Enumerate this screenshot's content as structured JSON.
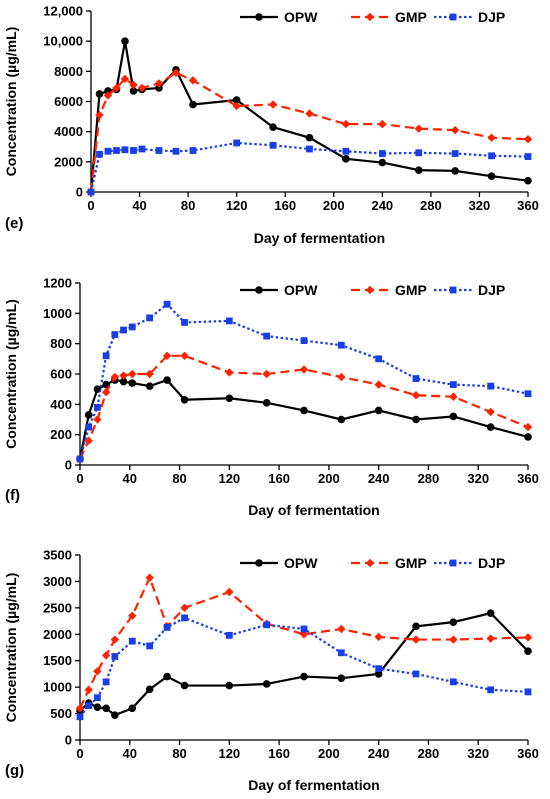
{
  "chart_data": [
    {
      "type": "line",
      "panel_label": "(e)",
      "xlabel": "Day of fermentation",
      "ylabel": "Concentration (µg/mL)",
      "xlim": [
        0,
        360
      ],
      "ylim": [
        0,
        12000
      ],
      "xticks": [
        0,
        40,
        80,
        120,
        160,
        200,
        240,
        280,
        320,
        360
      ],
      "yticks": [
        0,
        2000,
        4000,
        6000,
        8000,
        10000,
        12000
      ],
      "ytick_labels": [
        "0",
        "2000",
        "4000",
        "6000",
        "8000",
        "10,000",
        "12,000"
      ],
      "legend_position": "top-right",
      "series": [
        {
          "name": "OPW",
          "color": "#000000",
          "marker": "circle",
          "dash": "solid",
          "x": [
            0,
            7,
            14,
            21,
            28,
            35,
            42,
            56,
            70,
            84,
            120,
            150,
            180,
            210,
            240,
            270,
            300,
            330,
            360
          ],
          "y": [
            0,
            6500,
            6700,
            6800,
            10000,
            6700,
            6800,
            6900,
            8100,
            5800,
            6100,
            4300,
            3600,
            2200,
            1950,
            1450,
            1400,
            1050,
            750
          ]
        },
        {
          "name": "GMP",
          "color": "#ff2200",
          "marker": "diamond",
          "dash": "dashed",
          "x": [
            0,
            7,
            14,
            21,
            28,
            35,
            42,
            56,
            70,
            84,
            120,
            150,
            180,
            210,
            240,
            270,
            300,
            330,
            360
          ],
          "y": [
            0,
            5100,
            6400,
            6900,
            7500,
            7100,
            6900,
            7200,
            7900,
            7400,
            5700,
            5800,
            5200,
            4500,
            4500,
            4200,
            4100,
            3600,
            3500
          ]
        },
        {
          "name": "DJP",
          "color": "#1a3ee6",
          "marker": "square",
          "dash": "dotted",
          "x": [
            0,
            7,
            14,
            21,
            28,
            35,
            42,
            56,
            70,
            84,
            120,
            150,
            180,
            210,
            240,
            270,
            300,
            330,
            360
          ],
          "y": [
            0,
            2500,
            2700,
            2750,
            2800,
            2750,
            2850,
            2750,
            2700,
            2750,
            3250,
            3100,
            2850,
            2700,
            2550,
            2600,
            2550,
            2400,
            2350
          ]
        }
      ]
    },
    {
      "type": "line",
      "panel_label": "(f)",
      "xlabel": "Day of fermentation",
      "ylabel": "Concentration (µg/mL)",
      "xlim": [
        0,
        360
      ],
      "ylim": [
        0,
        1200
      ],
      "xticks": [
        0,
        40,
        80,
        120,
        160,
        200,
        240,
        280,
        320,
        360
      ],
      "yticks": [
        0,
        200,
        400,
        600,
        800,
        1000,
        1200
      ],
      "ytick_labels": [
        "0",
        "200",
        "400",
        "600",
        "800",
        "1000",
        "1200"
      ],
      "legend_position": "top-right",
      "series": [
        {
          "name": "OPW",
          "color": "#000000",
          "marker": "circle",
          "dash": "solid",
          "x": [
            0,
            7,
            14,
            21,
            28,
            35,
            42,
            56,
            70,
            84,
            120,
            150,
            180,
            210,
            240,
            270,
            300,
            330,
            360
          ],
          "y": [
            40,
            330,
            500,
            530,
            560,
            550,
            540,
            520,
            560,
            430,
            440,
            410,
            360,
            300,
            360,
            300,
            320,
            250,
            185
          ]
        },
        {
          "name": "GMP",
          "color": "#ff2200",
          "marker": "diamond",
          "dash": "dashed",
          "x": [
            0,
            7,
            14,
            21,
            28,
            35,
            42,
            56,
            70,
            84,
            120,
            150,
            180,
            210,
            240,
            270,
            300,
            330,
            360
          ],
          "y": [
            40,
            160,
            300,
            480,
            580,
            590,
            600,
            600,
            720,
            720,
            610,
            600,
            630,
            580,
            530,
            460,
            450,
            350,
            250
          ]
        },
        {
          "name": "DJP",
          "color": "#1a3ee6",
          "marker": "square",
          "dash": "dotted",
          "x": [
            0,
            7,
            14,
            21,
            28,
            35,
            42,
            56,
            70,
            84,
            120,
            150,
            180,
            210,
            240,
            270,
            300,
            330,
            360
          ],
          "y": [
            40,
            250,
            380,
            720,
            860,
            890,
            910,
            970,
            1060,
            940,
            950,
            850,
            820,
            790,
            700,
            570,
            530,
            520,
            470
          ]
        }
      ]
    },
    {
      "type": "line",
      "panel_label": "(g)",
      "xlabel": "Day of fermentation",
      "ylabel": "Concentration (µg/mL)",
      "xlim": [
        0,
        360
      ],
      "ylim": [
        0,
        3500
      ],
      "xticks": [
        0,
        40,
        80,
        120,
        160,
        200,
        240,
        280,
        320,
        360
      ],
      "yticks": [
        0,
        500,
        1000,
        1500,
        2000,
        2500,
        3000,
        3500
      ],
      "ytick_labels": [
        "0",
        "500",
        "1000",
        "1500",
        "2000",
        "2500",
        "3000",
        "3500"
      ],
      "legend_position": "top-right",
      "series": [
        {
          "name": "OPW",
          "color": "#000000",
          "marker": "circle",
          "dash": "solid",
          "x": [
            0,
            7,
            14,
            21,
            28,
            42,
            56,
            70,
            84,
            120,
            150,
            180,
            210,
            240,
            270,
            300,
            330,
            360
          ],
          "y": [
            550,
            700,
            620,
            600,
            470,
            600,
            960,
            1200,
            1030,
            1030,
            1060,
            1200,
            1170,
            1250,
            2150,
            2230,
            2400,
            1680
          ]
        },
        {
          "name": "GMP",
          "color": "#ff2200",
          "marker": "diamond",
          "dash": "dashed",
          "x": [
            0,
            7,
            14,
            21,
            28,
            42,
            56,
            70,
            84,
            120,
            150,
            180,
            210,
            240,
            270,
            300,
            330,
            360
          ],
          "y": [
            600,
            950,
            1300,
            1600,
            1900,
            2350,
            3070,
            2150,
            2500,
            2800,
            2200,
            2000,
            2100,
            1950,
            1900,
            1900,
            1920,
            1940
          ]
        },
        {
          "name": "DJP",
          "color": "#1a3ee6",
          "marker": "square",
          "dash": "dotted",
          "x": [
            0,
            7,
            14,
            21,
            28,
            42,
            56,
            70,
            84,
            120,
            150,
            180,
            210,
            240,
            270,
            300,
            330,
            360
          ],
          "y": [
            440,
            650,
            800,
            1100,
            1580,
            1870,
            1780,
            2130,
            2310,
            1980,
            2180,
            2100,
            1650,
            1350,
            1250,
            1100,
            950,
            910
          ]
        }
      ]
    }
  ]
}
